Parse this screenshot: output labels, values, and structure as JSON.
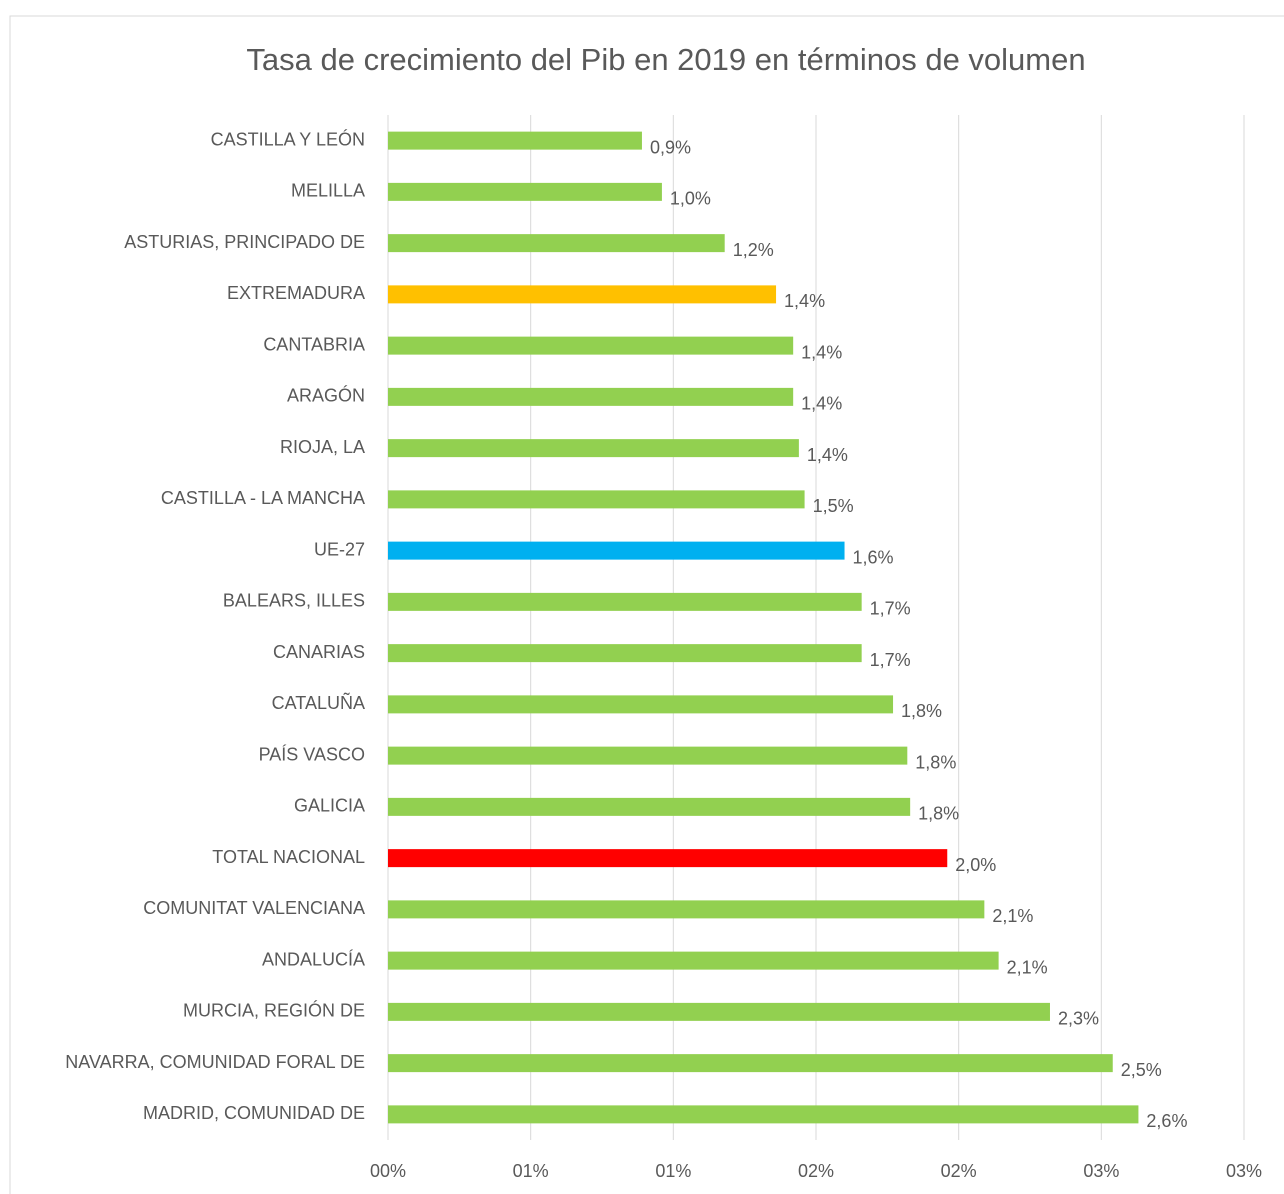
{
  "chart_data": {
    "type": "bar",
    "orientation": "horizontal",
    "title": "Tasa de crecimiento del Pib en 2019 en términos de volumen",
    "categories": [
      "CASTILLA Y LEÓN",
      "MELILLA",
      "ASTURIAS, PRINCIPADO DE",
      "EXTREMADURA",
      "CANTABRIA",
      "ARAGÓN",
      "RIOJA, LA",
      "CASTILLA - LA MANCHA",
      "UE-27",
      "BALEARS, ILLES",
      "CANARIAS",
      "CATALUÑA",
      "PAÍS VASCO",
      "GALICIA",
      "TOTAL NACIONAL",
      "COMUNITAT VALENCIANA",
      "ANDALUCÍA",
      "MURCIA, REGIÓN DE",
      "NAVARRA, COMUNIDAD FORAL DE",
      "MADRID, COMUNIDAD DE"
    ],
    "values": [
      0.89,
      0.96,
      1.18,
      1.36,
      1.42,
      1.42,
      1.44,
      1.46,
      1.6,
      1.66,
      1.66,
      1.77,
      1.82,
      1.83,
      1.96,
      2.09,
      2.14,
      2.32,
      2.54,
      2.63
    ],
    "value_labels": [
      "0,9%",
      "1,0%",
      "1,2%",
      "1,4%",
      "1,4%",
      "1,4%",
      "1,4%",
      "1,5%",
      "1,6%",
      "1,7%",
      "1,7%",
      "1,8%",
      "1,8%",
      "1,8%",
      "2,0%",
      "2,1%",
      "2,1%",
      "2,3%",
      "2,5%",
      "2,6%"
    ],
    "colors": [
      "#92d050",
      "#92d050",
      "#92d050",
      "#ffc000",
      "#92d050",
      "#92d050",
      "#92d050",
      "#92d050",
      "#00b0f0",
      "#92d050",
      "#92d050",
      "#92d050",
      "#92d050",
      "#92d050",
      "#ff0000",
      "#92d050",
      "#92d050",
      "#92d050",
      "#92d050",
      "#92d050"
    ],
    "xlim": [
      0,
      3
    ],
    "xticks": [
      {
        "value": 0,
        "label": "00%"
      },
      {
        "value": 0.5,
        "label": "01%"
      },
      {
        "value": 1,
        "label": "01%"
      },
      {
        "value": 1.5,
        "label": "02%"
      },
      {
        "value": 2,
        "label": "02%"
      },
      {
        "value": 2.5,
        "label": "03%"
      },
      {
        "value": 3,
        "label": "03%"
      }
    ],
    "grid": true
  }
}
